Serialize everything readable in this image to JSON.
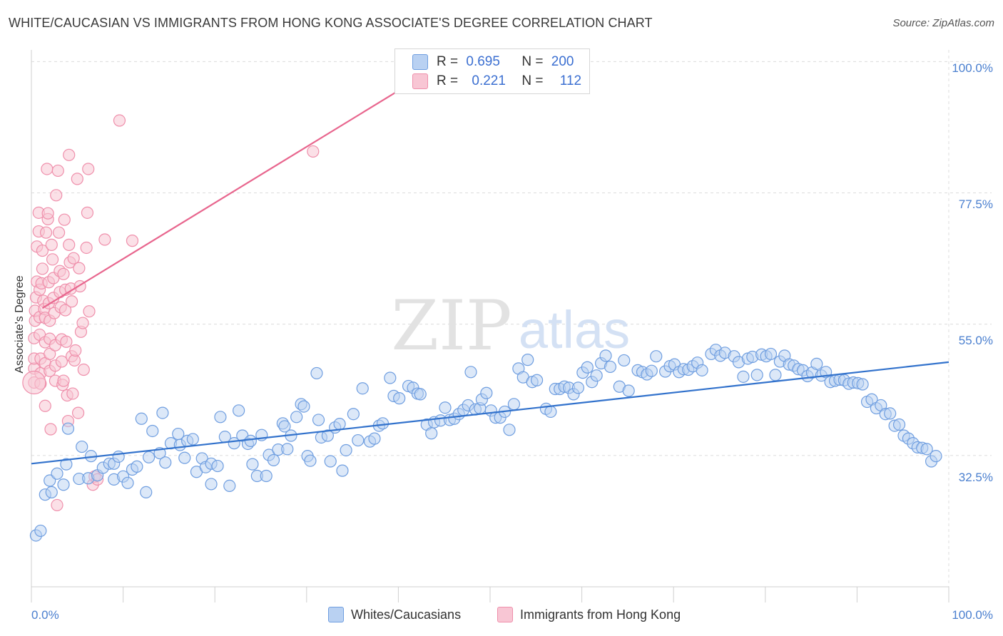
{
  "header": {
    "title": "WHITE/CAUCASIAN VS IMMIGRANTS FROM HONG KONG ASSOCIATE'S DEGREE CORRELATION CHART",
    "source": "Source: ZipAtlas.com"
  },
  "watermark": {
    "zip": "ZIP",
    "atlas": "atlas"
  },
  "legend": {
    "r_label": "R =",
    "n_label": "N =",
    "rows": [
      {
        "r": "0.695",
        "n": "200",
        "color": "#a8c8f0"
      },
      {
        "r": "0.221",
        "n": "112",
        "color": "#f7b6c8"
      }
    ]
  },
  "colors": {
    "blue_fill": "#b9d1f2",
    "blue_stroke": "#6f9ee0",
    "blue_line": "#3272cc",
    "pink_fill": "#f8c6d4",
    "pink_stroke": "#ef8fab",
    "pink_line": "#e8668e",
    "grid": "#dcdcdc",
    "tick_text": "#4a7fcf"
  },
  "chart_data": {
    "type": "scatter",
    "title": "WHITE/CAUCASIAN VS IMMIGRANTS FROM HONG KONG ASSOCIATE'S DEGREE CORRELATION CHART",
    "xlabel": "",
    "ylabel": "Associate's Degree",
    "xlim": [
      0,
      100
    ],
    "ylim": [
      10,
      102
    ],
    "x_tick_labels": [
      "0.0%",
      "100.0%"
    ],
    "y_ticks": [
      32.5,
      55.0,
      77.5,
      100.0
    ],
    "y_tick_labels": [
      "32.5%",
      "55.0%",
      "77.5%",
      "100.0%"
    ],
    "grid": true,
    "legend_position": "top-center",
    "series": [
      {
        "name": "Whites/Caucasians",
        "r": 0.695,
        "n": 200,
        "trend": {
          "x": [
            0,
            100
          ],
          "y": [
            31.1,
            48.5
          ]
        },
        "points": [
          [
            0.5,
            18.8
          ],
          [
            1,
            19.6
          ],
          [
            1.5,
            25.8
          ],
          [
            2,
            28.2
          ],
          [
            2.2,
            26.2
          ],
          [
            2.8,
            29.4
          ],
          [
            3.5,
            27.5
          ],
          [
            3.8,
            31.0
          ],
          [
            4,
            37.1
          ],
          [
            5.2,
            28.5
          ],
          [
            5.5,
            34.0
          ],
          [
            6.2,
            28.6
          ],
          [
            6.5,
            32.4
          ],
          [
            7.2,
            29.1
          ],
          [
            7.8,
            30.4
          ],
          [
            8.5,
            31.1
          ],
          [
            9,
            31.1
          ],
          [
            9,
            28.4
          ],
          [
            9.5,
            32.3
          ],
          [
            10,
            28.9
          ],
          [
            10.5,
            27.8
          ],
          [
            11,
            30.1
          ],
          [
            11.5,
            30.6
          ],
          [
            12,
            38.8
          ],
          [
            12.5,
            26.2
          ],
          [
            12.8,
            32.2
          ],
          [
            13.2,
            36.7
          ],
          [
            14,
            32.9
          ],
          [
            14.3,
            39.8
          ],
          [
            14.6,
            31.3
          ],
          [
            15.2,
            34.6
          ],
          [
            16,
            36.2
          ],
          [
            16.2,
            34.3
          ],
          [
            16.7,
            32.1
          ],
          [
            17,
            35.0
          ],
          [
            17.6,
            35.3
          ],
          [
            18,
            29.7
          ],
          [
            18.6,
            32.0
          ],
          [
            19,
            30.5
          ],
          [
            19.6,
            31.1
          ],
          [
            19.6,
            27.6
          ],
          [
            20.3,
            30.7
          ],
          [
            20.6,
            39.1
          ],
          [
            21.1,
            35.7
          ],
          [
            21.6,
            27.3
          ],
          [
            22.1,
            34.6
          ],
          [
            22.6,
            40.2
          ],
          [
            23,
            35.9
          ],
          [
            23.6,
            34.5
          ],
          [
            23.9,
            35.0
          ],
          [
            24.1,
            31.0
          ],
          [
            24.6,
            29.0
          ],
          [
            25.1,
            36.0
          ],
          [
            25.6,
            29.0
          ],
          [
            25.9,
            32.6
          ],
          [
            26.4,
            31.7
          ],
          [
            26.9,
            33.5
          ],
          [
            27.4,
            38.0
          ],
          [
            27.6,
            37.5
          ],
          [
            27.9,
            33.6
          ],
          [
            28.3,
            35.9
          ],
          [
            28.9,
            39.1
          ],
          [
            29.4,
            41.3
          ],
          [
            29.7,
            40.9
          ],
          [
            30.1,
            32.4
          ],
          [
            30.4,
            31.6
          ],
          [
            31.1,
            46.6
          ],
          [
            31.3,
            38.6
          ],
          [
            31.6,
            35.6
          ],
          [
            32.3,
            35.9
          ],
          [
            32.6,
            31.5
          ],
          [
            33.1,
            37.3
          ],
          [
            33.6,
            37.9
          ],
          [
            33.9,
            29.9
          ],
          [
            34.3,
            33.4
          ],
          [
            35.1,
            39.6
          ],
          [
            35.6,
            35.1
          ],
          [
            36.1,
            44.0
          ],
          [
            36.9,
            34.9
          ],
          [
            37.4,
            35.4
          ],
          [
            37.9,
            37.6
          ],
          [
            38.3,
            38.0
          ],
          [
            39.1,
            45.8
          ],
          [
            39.5,
            42.7
          ],
          [
            40.1,
            42.3
          ],
          [
            41.1,
            44.4
          ],
          [
            41.6,
            44.1
          ],
          [
            42.1,
            43.1
          ],
          [
            42.4,
            43.0
          ],
          [
            43.1,
            37.8
          ],
          [
            43.6,
            36.3
          ],
          [
            43.9,
            38.2
          ],
          [
            44.6,
            38.5
          ],
          [
            45.1,
            40.7
          ],
          [
            45.6,
            38.6
          ],
          [
            46.1,
            38.8
          ],
          [
            46.6,
            39.6
          ],
          [
            47.1,
            40.3
          ],
          [
            47.6,
            41.1
          ],
          [
            47.9,
            46.8
          ],
          [
            48.4,
            40.4
          ],
          [
            48.9,
            40.6
          ],
          [
            49.1,
            42.1
          ],
          [
            49.6,
            43.2
          ],
          [
            50.1,
            40.2
          ],
          [
            50.6,
            39.0
          ],
          [
            51.1,
            39.0
          ],
          [
            51.6,
            40.0
          ],
          [
            52.1,
            36.9
          ],
          [
            52.6,
            41.3
          ],
          [
            53.1,
            47.4
          ],
          [
            53.6,
            45.9
          ],
          [
            54.1,
            48.9
          ],
          [
            54.6,
            45.1
          ],
          [
            55.1,
            45.4
          ],
          [
            56.1,
            40.5
          ],
          [
            56.6,
            40.0
          ],
          [
            57.1,
            43.9
          ],
          [
            57.6,
            43.9
          ],
          [
            58.1,
            44.3
          ],
          [
            58.6,
            44.1
          ],
          [
            59.1,
            43.0
          ],
          [
            59.6,
            44.1
          ],
          [
            60.1,
            46.7
          ],
          [
            60.6,
            47.6
          ],
          [
            61.1,
            45.1
          ],
          [
            61.6,
            46.2
          ],
          [
            62.1,
            48.3
          ],
          [
            62.6,
            49.6
          ],
          [
            63.1,
            47.7
          ],
          [
            64.1,
            44.3
          ],
          [
            64.6,
            48.8
          ],
          [
            65.1,
            43.6
          ],
          [
            66.1,
            47.1
          ],
          [
            66.6,
            46.8
          ],
          [
            67.1,
            46.4
          ],
          [
            67.6,
            47.0
          ],
          [
            68.1,
            49.5
          ],
          [
            69.1,
            46.9
          ],
          [
            69.6,
            47.8
          ],
          [
            70.1,
            48.1
          ],
          [
            70.6,
            46.8
          ],
          [
            71.1,
            47.3
          ],
          [
            71.6,
            47.2
          ],
          [
            72.1,
            47.8
          ],
          [
            72.6,
            48.4
          ],
          [
            73.1,
            47.1
          ],
          [
            74.1,
            49.9
          ],
          [
            74.6,
            50.6
          ],
          [
            75.1,
            49.6
          ],
          [
            75.6,
            50.1
          ],
          [
            76.6,
            49.5
          ],
          [
            77.1,
            48.5
          ],
          [
            77.6,
            46.0
          ],
          [
            78.1,
            49.1
          ],
          [
            78.6,
            49.4
          ],
          [
            79.1,
            46.3
          ],
          [
            79.6,
            49.8
          ],
          [
            80.1,
            49.5
          ],
          [
            80.6,
            49.9
          ],
          [
            81.1,
            46.3
          ],
          [
            81.6,
            48.6
          ],
          [
            82.1,
            49.6
          ],
          [
            82.6,
            48.1
          ],
          [
            83.1,
            47.9
          ],
          [
            83.6,
            47.3
          ],
          [
            84.1,
            47.1
          ],
          [
            84.6,
            46.1
          ],
          [
            85.1,
            46.7
          ],
          [
            85.6,
            48.2
          ],
          [
            86.1,
            46.2
          ],
          [
            86.6,
            46.8
          ],
          [
            87.1,
            45.1
          ],
          [
            87.6,
            45.3
          ],
          [
            88.1,
            45.5
          ],
          [
            88.6,
            45.4
          ],
          [
            89.1,
            44.8
          ],
          [
            89.6,
            45.0
          ],
          [
            90.1,
            44.9
          ],
          [
            90.6,
            44.7
          ],
          [
            91.1,
            41.7
          ],
          [
            91.6,
            42.1
          ],
          [
            92.1,
            40.6
          ],
          [
            92.6,
            41.1
          ],
          [
            93.1,
            39.6
          ],
          [
            93.6,
            39.7
          ],
          [
            94.1,
            37.6
          ],
          [
            94.6,
            37.8
          ],
          [
            95.1,
            35.9
          ],
          [
            95.6,
            35.4
          ],
          [
            96.1,
            34.6
          ],
          [
            96.6,
            33.9
          ],
          [
            97.1,
            33.8
          ],
          [
            97.6,
            33.6
          ],
          [
            98.1,
            31.5
          ],
          [
            98.6,
            32.4
          ]
        ]
      },
      {
        "name": "Immigrants from Hong Kong",
        "r": 0.221,
        "n": 112,
        "trend": {
          "x": [
            0,
            40
          ],
          "y": [
            56.6,
            95.0
          ]
        },
        "points": [
          [
            0.3,
            45.0
          ],
          [
            0.3,
            47.4
          ],
          [
            0.3,
            49.1
          ],
          [
            0.3,
            52.6
          ],
          [
            0.4,
            55.6
          ],
          [
            0.4,
            57.3
          ],
          [
            0.5,
            59.6
          ],
          [
            0.6,
            62.3
          ],
          [
            0.6,
            68.3
          ],
          [
            0.8,
            74.1
          ],
          [
            0.8,
            70.9
          ],
          [
            0.9,
            60.9
          ],
          [
            0.9,
            56.2
          ],
          [
            0.9,
            53.2
          ],
          [
            1.0,
            49.1
          ],
          [
            1.0,
            46.6
          ],
          [
            1.0,
            44.8
          ],
          [
            1.1,
            62.0
          ],
          [
            1.2,
            64.5
          ],
          [
            1.2,
            67.6
          ],
          [
            1.3,
            59.0
          ],
          [
            1.4,
            57.6
          ],
          [
            1.5,
            56.1
          ],
          [
            1.5,
            51.9
          ],
          [
            1.5,
            48.3
          ],
          [
            1.5,
            41.0
          ],
          [
            1.6,
            70.7
          ],
          [
            1.7,
            81.6
          ],
          [
            1.8,
            73.0
          ],
          [
            1.8,
            74.0
          ],
          [
            1.9,
            62.2
          ],
          [
            1.9,
            58.6
          ],
          [
            2.0,
            55.6
          ],
          [
            2.0,
            52.5
          ],
          [
            2.0,
            49.9
          ],
          [
            2.0,
            47.0
          ],
          [
            2.1,
            37.0
          ],
          [
            2.2,
            68.6
          ],
          [
            2.3,
            66.1
          ],
          [
            2.4,
            62.9
          ],
          [
            2.4,
            59.5
          ],
          [
            2.5,
            56.9
          ],
          [
            2.6,
            51.4
          ],
          [
            2.6,
            47.9
          ],
          [
            2.6,
            45.3
          ],
          [
            2.7,
            77.1
          ],
          [
            2.8,
            24.0
          ],
          [
            2.9,
            81.3
          ],
          [
            3.0,
            70.7
          ],
          [
            3.1,
            64.1
          ],
          [
            3.1,
            60.5
          ],
          [
            3.2,
            57.9
          ],
          [
            3.3,
            52.4
          ],
          [
            3.3,
            48.6
          ],
          [
            3.4,
            44.6
          ],
          [
            3.5,
            45.3
          ],
          [
            3.5,
            63.6
          ],
          [
            3.6,
            72.9
          ],
          [
            3.7,
            60.9
          ],
          [
            3.7,
            57.4
          ],
          [
            3.8,
            52.0
          ],
          [
            3.9,
            42.8
          ],
          [
            4.0,
            38.4
          ],
          [
            4.1,
            84.0
          ],
          [
            4.1,
            68.6
          ],
          [
            4.2,
            65.6
          ],
          [
            4.3,
            61.1
          ],
          [
            4.4,
            58.9
          ],
          [
            4.4,
            49.5
          ],
          [
            4.5,
            43.1
          ],
          [
            4.6,
            66.3
          ],
          [
            4.7,
            48.8
          ],
          [
            4.8,
            50.5
          ],
          [
            5.0,
            79.9
          ],
          [
            5.1,
            39.8
          ],
          [
            5.2,
            64.6
          ],
          [
            5.3,
            61.5
          ],
          [
            5.4,
            53.7
          ],
          [
            5.6,
            55.2
          ],
          [
            5.7,
            47.2
          ],
          [
            6.0,
            68.1
          ],
          [
            6.1,
            74.1
          ],
          [
            6.2,
            81.6
          ],
          [
            6.3,
            57.2
          ],
          [
            6.7,
            27.5
          ],
          [
            6.9,
            28.9
          ],
          [
            7.2,
            28.4
          ],
          [
            8.0,
            69.5
          ],
          [
            9.6,
            89.9
          ],
          [
            11.0,
            69.3
          ],
          [
            30.7,
            84.6
          ]
        ]
      }
    ]
  },
  "bottom_legend": [
    {
      "label": "Whites/Caucasians",
      "color": "#b9d1f2"
    },
    {
      "label": "Immigrants from Hong Kong",
      "color": "#f8c6d4"
    }
  ]
}
